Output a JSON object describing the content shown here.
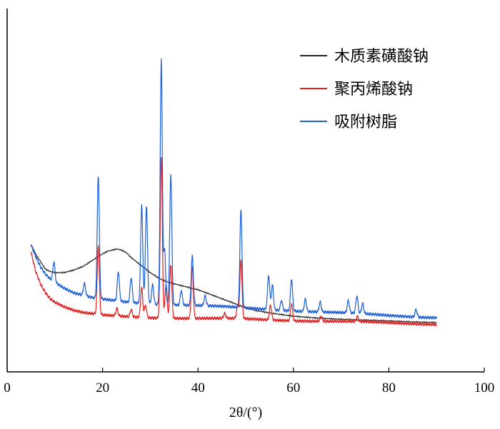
{
  "chart_data": {
    "type": "line",
    "title": "",
    "xlabel": "2θ/(°)",
    "ylabel": "",
    "xlim": [
      0,
      100
    ],
    "x_ticks": [
      "0",
      "20",
      "40",
      "60",
      "80",
      "100"
    ],
    "grid": false,
    "y_ticks_shown": false,
    "legend_position": "top-right",
    "series": [
      {
        "name": "木质素磺酸钠",
        "color": "#222222",
        "points": [
          [
            5,
            0.62
          ],
          [
            6,
            0.58
          ],
          [
            7,
            0.55
          ],
          [
            8,
            0.52
          ],
          [
            9,
            0.51
          ],
          [
            10,
            0.505
          ],
          [
            12,
            0.505
          ],
          [
            14,
            0.515
          ],
          [
            16,
            0.53
          ],
          [
            18,
            0.555
          ],
          [
            20,
            0.58
          ],
          [
            21,
            0.59
          ],
          [
            22,
            0.595
          ],
          [
            23,
            0.6
          ],
          [
            24,
            0.595
          ],
          [
            25,
            0.585
          ],
          [
            26,
            0.565
          ],
          [
            28,
            0.535
          ],
          [
            30,
            0.505
          ],
          [
            32,
            0.48
          ],
          [
            34,
            0.465
          ],
          [
            36,
            0.455
          ],
          [
            38,
            0.445
          ],
          [
            40,
            0.435
          ],
          [
            42,
            0.42
          ],
          [
            44,
            0.405
          ],
          [
            46,
            0.39
          ],
          [
            48,
            0.375
          ],
          [
            50,
            0.36
          ],
          [
            52,
            0.35
          ],
          [
            55,
            0.34
          ],
          [
            60,
            0.328
          ],
          [
            65,
            0.32
          ],
          [
            70,
            0.314
          ],
          [
            75,
            0.31
          ],
          [
            80,
            0.307
          ],
          [
            85,
            0.304
          ],
          [
            90,
            0.302
          ]
        ]
      },
      {
        "name": "聚丙烯酸钠",
        "color": "#e02020",
        "baseline": [
          [
            5,
            0.59
          ],
          [
            6,
            0.51
          ],
          [
            7,
            0.46
          ],
          [
            8,
            0.425
          ],
          [
            9,
            0.4
          ],
          [
            10,
            0.385
          ],
          [
            12,
            0.365
          ],
          [
            14,
            0.35
          ],
          [
            16,
            0.34
          ],
          [
            18,
            0.335
          ],
          [
            20,
            0.33
          ],
          [
            25,
            0.325
          ],
          [
            30,
            0.322
          ],
          [
            40,
            0.318
          ],
          [
            50,
            0.315
          ],
          [
            60,
            0.31
          ],
          [
            70,
            0.305
          ],
          [
            80,
            0.3
          ],
          [
            90,
            0.295
          ]
        ],
        "peaks": [
          [
            19.1,
            0.28
          ],
          [
            23.0,
            0.03
          ],
          [
            26.0,
            0.03
          ],
          [
            28.2,
            0.12
          ],
          [
            29.0,
            0.05
          ],
          [
            32.3,
            0.66
          ],
          [
            33.3,
            0.14
          ],
          [
            34.3,
            0.22
          ],
          [
            38.8,
            0.21
          ],
          [
            45.6,
            0.02
          ],
          [
            48.3,
            0.05
          ],
          [
            49.0,
            0.24
          ],
          [
            55.2,
            0.06
          ],
          [
            59.6,
            0.07
          ],
          [
            65.8,
            0.02
          ],
          [
            73.4,
            0.02
          ]
        ]
      },
      {
        "name": "吸附树脂",
        "color": "#1f5fd6",
        "baseline": [
          [
            5,
            0.62
          ],
          [
            6,
            0.57
          ],
          [
            7,
            0.53
          ],
          [
            8,
            0.5
          ],
          [
            9,
            0.48
          ],
          [
            10,
            0.465
          ],
          [
            12,
            0.44
          ],
          [
            14,
            0.42
          ],
          [
            16,
            0.41
          ],
          [
            18,
            0.4
          ],
          [
            20,
            0.395
          ],
          [
            25,
            0.385
          ],
          [
            30,
            0.378
          ],
          [
            40,
            0.37
          ],
          [
            50,
            0.36
          ],
          [
            60,
            0.35
          ],
          [
            70,
            0.34
          ],
          [
            80,
            0.33
          ],
          [
            90,
            0.322
          ]
        ],
        "peaks": [
          [
            9.8,
            0.08
          ],
          [
            16.2,
            0.05
          ],
          [
            19.1,
            0.5
          ],
          [
            23.3,
            0.12
          ],
          [
            26.0,
            0.1
          ],
          [
            28.2,
            0.4
          ],
          [
            29.2,
            0.4
          ],
          [
            30.5,
            0.08
          ],
          [
            32.3,
            1.0
          ],
          [
            33.0,
            0.22
          ],
          [
            34.3,
            0.53
          ],
          [
            36.5,
            0.06
          ],
          [
            38.8,
            0.2
          ],
          [
            41.5,
            0.04
          ],
          [
            49.0,
            0.4
          ],
          [
            54.8,
            0.14
          ],
          [
            55.6,
            0.1
          ],
          [
            57.5,
            0.04
          ],
          [
            59.6,
            0.13
          ],
          [
            62.5,
            0.05
          ],
          [
            65.6,
            0.04
          ],
          [
            71.5,
            0.05
          ],
          [
            73.3,
            0.07
          ],
          [
            74.5,
            0.04
          ],
          [
            85.7,
            0.03
          ]
        ]
      }
    ]
  }
}
